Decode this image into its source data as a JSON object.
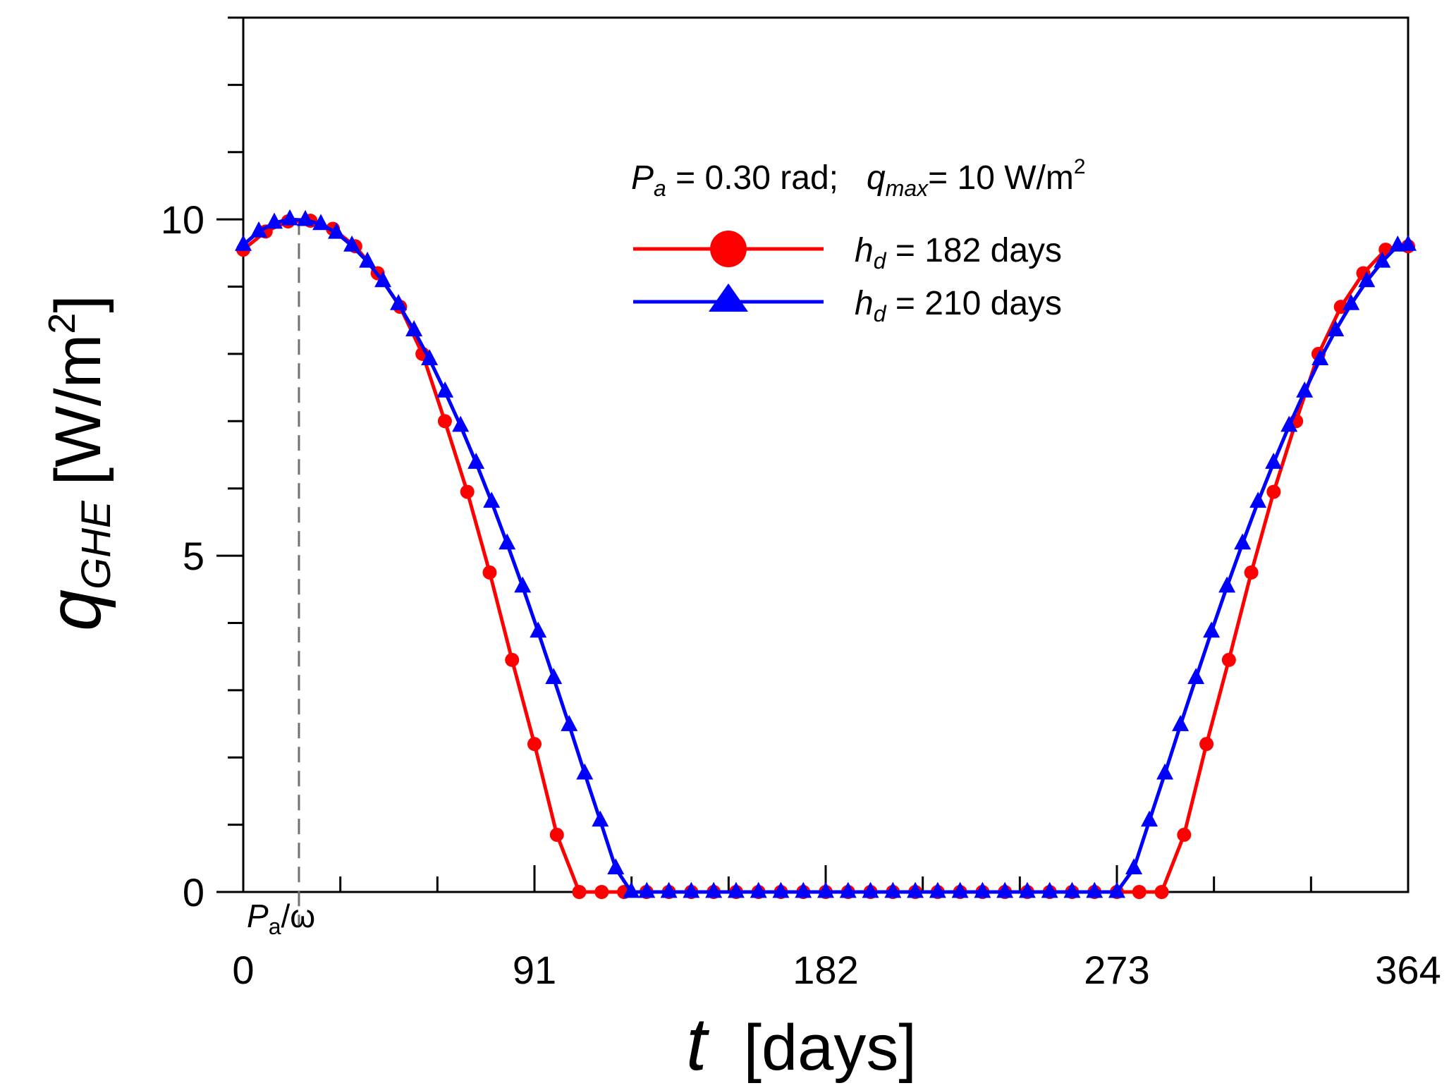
{
  "chart_data": {
    "type": "line",
    "title": "",
    "xlabel": {
      "symbol": "t",
      "unit": "[days]"
    },
    "ylabel": {
      "symbol": "q",
      "subscript": "GHE",
      "unit": "[W/m",
      "unit_sup": "2",
      "unit_close": "]"
    },
    "xlim": [
      0,
      364
    ],
    "ylim": [
      0,
      13
    ],
    "x_ticks": [
      0,
      91,
      182,
      273,
      364
    ],
    "x_tick_labels": [
      "0",
      "91",
      "182",
      "273",
      "364"
    ],
    "x_minor_step": 30.33,
    "y_ticks": [
      0,
      5,
      10
    ],
    "y_tick_labels": [
      "0",
      "5",
      "10"
    ],
    "y_minor_step": 1,
    "grid": false,
    "legend_position": "top-right",
    "params": {
      "pa_label": {
        "P": "P",
        "a": "a",
        "eq": " = 0.30 rad;   ",
        "q": "q",
        "max": "max",
        "eq2": "= 10 W/m",
        "sup": "2"
      }
    },
    "annotation": {
      "x": 17.4,
      "label_P": "P",
      "label_sub": "a",
      "label_rest": "/ω"
    },
    "series": [
      {
        "name": "h_d = 182 days",
        "legend": {
          "h": "h",
          "d": "d",
          "rest": " = 182 days"
        },
        "color": "#ff0000",
        "marker": "circle",
        "x": [
          0,
          7,
          14,
          21,
          28,
          35,
          42,
          49,
          56,
          63,
          70,
          77,
          84,
          91,
          98,
          105,
          112,
          119,
          126,
          133,
          140,
          147,
          154,
          161,
          168,
          175,
          182,
          189,
          196,
          203,
          210,
          217,
          224,
          231,
          238,
          245,
          252,
          259,
          266,
          273,
          280,
          287,
          294,
          301,
          308,
          315,
          322,
          329,
          336,
          343,
          350,
          357,
          364
        ],
        "values": [
          9.55,
          9.82,
          9.97,
          9.98,
          9.86,
          9.6,
          9.2,
          8.7,
          8.0,
          7.0,
          5.95,
          4.75,
          3.45,
          2.2,
          0.85,
          0,
          0,
          0,
          0,
          0,
          0,
          0,
          0,
          0,
          0,
          0,
          0,
          0,
          0,
          0,
          0,
          0,
          0,
          0,
          0,
          0,
          0,
          0,
          0,
          0,
          0,
          0,
          0.85,
          2.2,
          3.45,
          4.75,
          5.95,
          7.0,
          8.0,
          8.7,
          9.2,
          9.55,
          9.6
        ]
      },
      {
        "name": "h_d = 210 days",
        "legend": {
          "h": "h",
          "d": "d",
          "rest": " = 210 days"
        },
        "color": "#0000ff",
        "marker": "triangle",
        "x": [
          0,
          4.85,
          9.7,
          14.55,
          19.4,
          24.25,
          29.1,
          33.95,
          38.8,
          43.65,
          48.5,
          53.35,
          58.2,
          63.05,
          67.9,
          72.75,
          77.6,
          82.45,
          87.3,
          92.15,
          97,
          101.85,
          106.7,
          111.55,
          116.4,
          121.25,
          126.1,
          133,
          140,
          147,
          154,
          161,
          168,
          175,
          182,
          189,
          196,
          203,
          210,
          217,
          224,
          231,
          238,
          245,
          252,
          259,
          266,
          273,
          278.3,
          283.15,
          288,
          292.85,
          297.7,
          302.55,
          307.4,
          312.25,
          317.1,
          321.95,
          326.8,
          331.65,
          336.5,
          341.35,
          346.2,
          351.05,
          355.9,
          360.75,
          364
        ],
        "values": [
          9.62,
          9.82,
          9.95,
          10,
          9.99,
          9.93,
          9.8,
          9.61,
          9.37,
          9.08,
          8.74,
          8.35,
          7.92,
          7.44,
          6.93,
          6.38,
          5.8,
          5.18,
          4.54,
          3.87,
          3.18,
          2.48,
          1.76,
          1.06,
          0.35,
          0,
          0,
          0,
          0,
          0,
          0,
          0,
          0,
          0,
          0,
          0,
          0,
          0,
          0,
          0,
          0,
          0,
          0,
          0,
          0,
          0,
          0,
          0,
          0.35,
          1.06,
          1.76,
          2.48,
          3.18,
          3.87,
          4.54,
          5.18,
          5.8,
          6.38,
          6.93,
          7.44,
          7.92,
          8.35,
          8.74,
          9.08,
          9.37,
          9.61,
          9.62
        ]
      }
    ]
  }
}
